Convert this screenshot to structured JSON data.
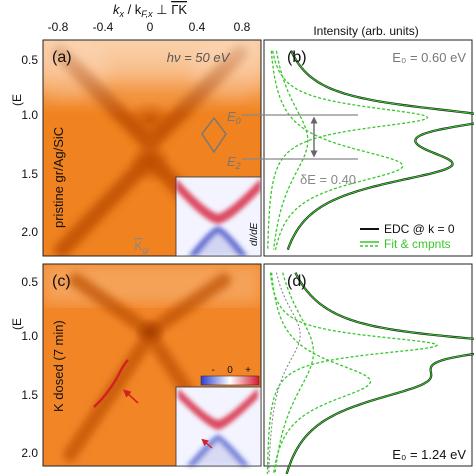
{
  "figure": {
    "top_axis_label_main": "k",
    "top_axis_sub_x": "x",
    "top_axis_label_slash": " / k",
    "top_axis_sub_fx": "F,x",
    "top_axis_perp": " ⊥ ",
    "top_axis_label_gamma": "ΓK",
    "top_ticks": [
      "-0.8",
      "-0.4",
      "0",
      "0.4",
      "0.8"
    ],
    "left_ticks": [
      "0.5",
      "1.0",
      "1.5",
      "2.0"
    ],
    "right_header": "Intensity (arb. units)",
    "left_ylabel_top": "(E",
    "left_ylabel_bottom": "(E"
  },
  "panel_a": {
    "tag": "(a)",
    "photon": "hν = 50 eV",
    "sample_label": "pristine gr/Ag/SiC",
    "kgr_label": "K",
    "kgr_sub": "gr",
    "inset_label": "dI/dE"
  },
  "panel_b": {
    "tag": "(b)",
    "e0_label": "E₀ = 0.60 eV",
    "marker_e0": "E",
    "marker_e0_sub": "0",
    "marker_e2": "E",
    "marker_e2_sub": "2",
    "delta_label": "δE = 0.40",
    "legend": [
      {
        "label": "EDC @ k = 0",
        "color": "#111111"
      },
      {
        "label": "Fit & cmpnts",
        "color": "#39c82d"
      }
    ]
  },
  "panel_c": {
    "tag": "(c)",
    "sample_label": "K dosed (7 min)",
    "colorbar_labels": [
      "-",
      "0",
      "+"
    ]
  },
  "panel_d": {
    "tag": "(d)",
    "e0_label": "E₀ = 1.24 eV"
  },
  "colors": {
    "orange": "#f07d1e",
    "green": "#39c82d",
    "red": "#d42020",
    "arrow_grey": "#666666"
  },
  "icons": [
    "diamond-bz-icon",
    "double-arrow-icon",
    "red-arrow-icon"
  ]
}
